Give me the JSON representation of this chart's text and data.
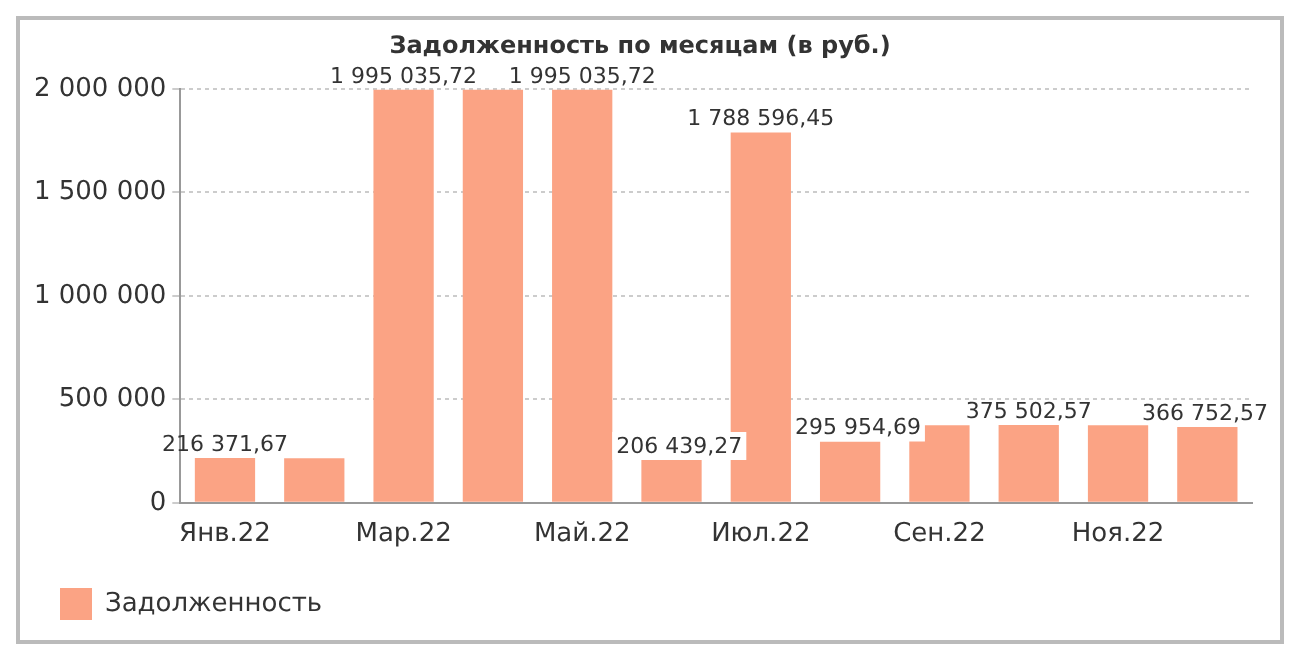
{
  "chart_data": {
    "type": "bar",
    "title": "Задолженность по месяцам (в руб.)",
    "categories": [
      "Янв.22",
      null,
      "Мар.22",
      null,
      "Май.22",
      null,
      "Июл.22",
      null,
      "Сен.22",
      null,
      "Ноя.22",
      null
    ],
    "series": [
      {
        "name": "Задолженность",
        "color": "#fba384",
        "values": [
          216371.67,
          215000,
          1995035.72,
          1995000,
          1995035.72,
          206439.27,
          1788596.45,
          295954.69,
          375000,
          375502.57,
          375000,
          366752.57
        ],
        "value_labels": [
          "216 371,67",
          null,
          "1 995 035,72",
          null,
          "1 995 035,72",
          "206 439,27",
          "1 788 596,45",
          "295 954,69",
          null,
          "375 502,57",
          null,
          "366 752,57"
        ]
      }
    ],
    "ylim": [
      0,
      2000000
    ],
    "yticks": [
      0,
      {
        "value": 500000,
        "label": "500 000"
      },
      {
        "value": 1000000,
        "label": "1 000 000"
      },
      {
        "value": 1500000,
        "label": "1 500 000"
      },
      {
        "value": 2000000,
        "label": "2 000 000"
      }
    ],
    "grid": "y",
    "legend": "bottom left"
  }
}
